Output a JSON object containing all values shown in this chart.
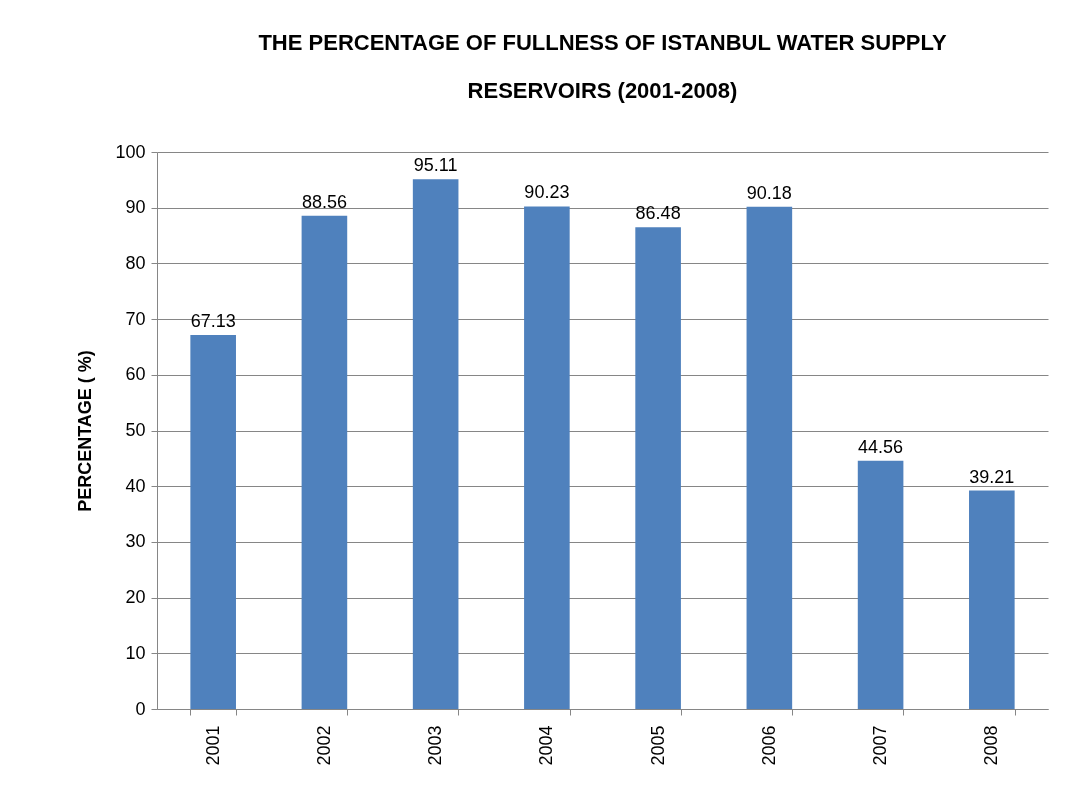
{
  "chart_data": {
    "type": "bar",
    "title": "THE PERCENTAGE OF FULLNESS OF ISTANBUL WATER SUPPLY RESERVOIRS (2001-2008)",
    "ylabel": "PERCENTAGE ( %)",
    "categories": [
      "2001",
      "2002",
      "2003",
      "2004",
      "2005",
      "2006",
      "2007",
      "2008"
    ],
    "values": [
      67.13,
      88.56,
      95.11,
      90.23,
      86.48,
      90.18,
      44.56,
      39.21
    ],
    "color": "#4f81bd",
    "ylim": [
      0,
      100
    ],
    "yticks": [
      0,
      10,
      20,
      30,
      40,
      50,
      60,
      70,
      80,
      90,
      100
    ],
    "grid": "y",
    "data_labels": true
  }
}
